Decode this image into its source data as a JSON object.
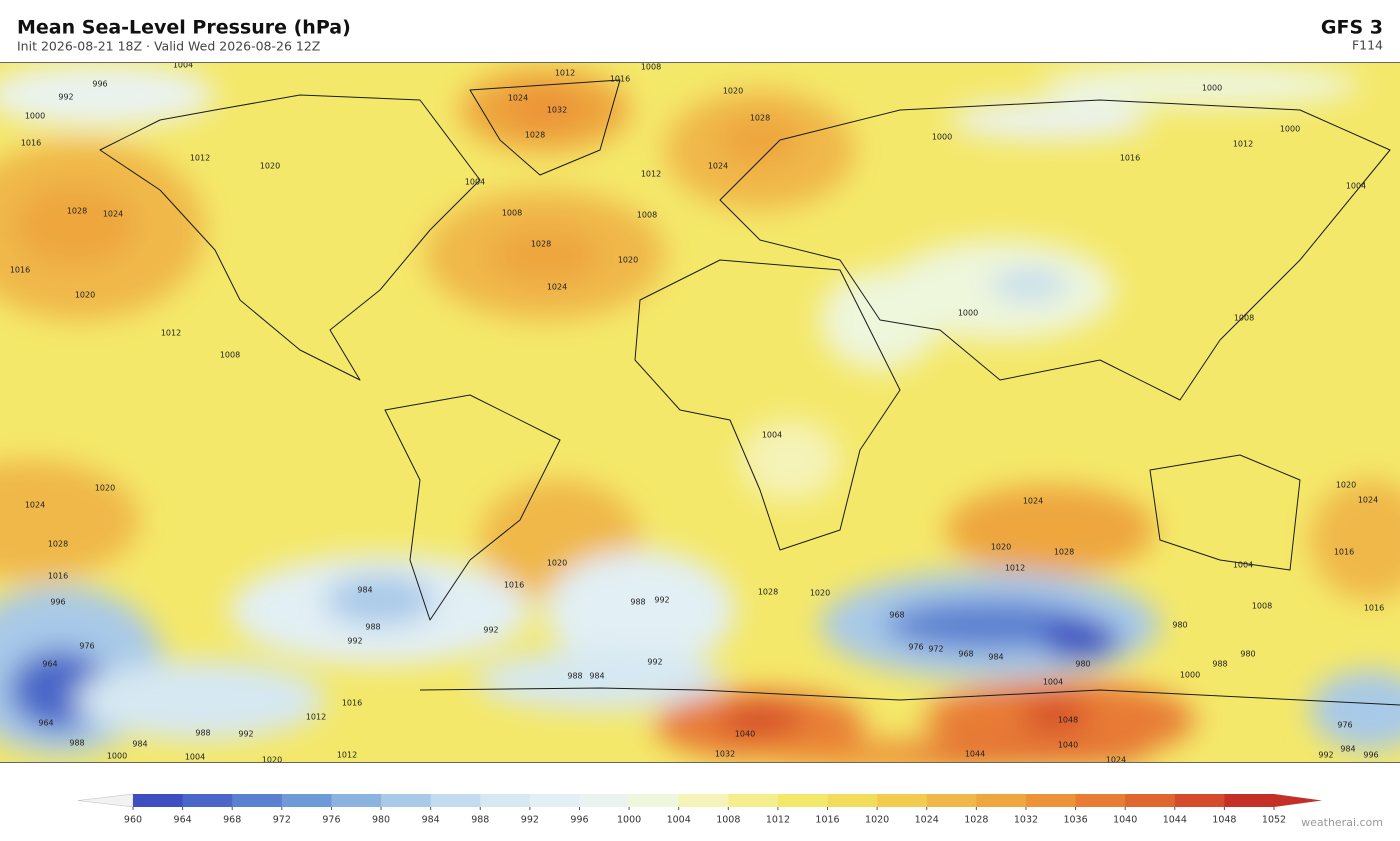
{
  "header": {
    "title": "Mean Sea-Level Pressure  (hPa)",
    "subtitle": "Init 2026-08-21 18Z  ·  Valid Wed 2026-08-26 12Z",
    "model": "GFS  3",
    "forecast_hour": "F114"
  },
  "colorbar": {
    "ticks": [
      960,
      964,
      968,
      972,
      976,
      980,
      984,
      988,
      992,
      996,
      1000,
      1004,
      1008,
      1012,
      1016,
      1020,
      1024,
      1028,
      1032,
      1036,
      1040,
      1044,
      1048,
      1052
    ],
    "colors": [
      "#3d4fc0",
      "#4a66c8",
      "#5b80d0",
      "#6f9ad8",
      "#8bb3e0",
      "#a8c9e8",
      "#c2dbee",
      "#d6e8f2",
      "#e2eff4",
      "#eaf3f0",
      "#eef6dc",
      "#f5f3b8",
      "#f5ee8c",
      "#f4e86a",
      "#f2dc5c",
      "#f2cc50",
      "#f0b848",
      "#eea63e",
      "#ec9238",
      "#e87c34",
      "#e06630",
      "#d44c2c",
      "#c43028"
    ],
    "under_color": "#f2f2f2",
    "over_color": "#c43028"
  },
  "map": {
    "contour_labels": [
      "1004",
      "996",
      "992",
      "1000",
      "1016",
      "1012",
      "1020",
      "1028",
      "1024",
      "1016",
      "1020",
      "1012",
      "1008",
      "1012",
      "1016",
      "1008",
      "1020",
      "1024",
      "1032",
      "1028",
      "1028",
      "1024",
      "1012",
      "1004",
      "1008",
      "1028",
      "1024",
      "1020",
      "1008",
      "1000",
      "1000",
      "1012",
      "1016",
      "1000",
      "1004",
      "1008",
      "1000",
      "1004",
      "1020",
      "1024",
      "1028",
      "1016",
      "996",
      "976",
      "964",
      "964",
      "988",
      "984",
      "1000",
      "1004",
      "1012",
      "1012",
      "1020",
      "988",
      "992",
      "1016",
      "984",
      "988",
      "992",
      "992",
      "1016",
      "1020",
      "988",
      "992",
      "992",
      "988",
      "984",
      "1028",
      "1020",
      "1024",
      "1028",
      "1020",
      "1012",
      "1008",
      "968",
      "976",
      "972",
      "968",
      "984",
      "980",
      "980",
      "980",
      "988",
      "1000",
      "1004",
      "1040",
      "1032",
      "1044",
      "1040",
      "1048",
      "1024",
      "976",
      "984",
      "992",
      "996",
      "1024",
      "1020",
      "1016",
      "1016",
      "1004"
    ]
  },
  "footer": {
    "credit": "weatherai.com"
  }
}
